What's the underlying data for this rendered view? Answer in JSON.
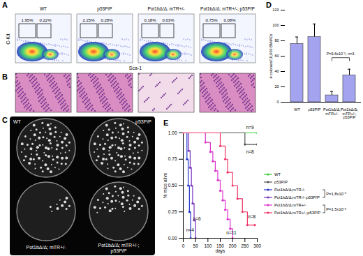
{
  "figure": {
    "panel_A": {
      "letter": "A",
      "y_label": "C-Kit",
      "x_label": "Sca-1",
      "plots": [
        {
          "label": "WT",
          "gates": [
            "1.95%",
            "0.22%"
          ]
        },
        {
          "label": "p53P/P",
          "gates": [
            "2.25%",
            "0.28%"
          ]
        },
        {
          "label": "Pot1bΔ/Δ; mTR+/-",
          "gates": [
            "0.18%",
            "0.03%"
          ]
        },
        {
          "label": "Pot1bΔ/Δ; mTR+/-; p53P/P",
          "gates": [
            "0.75%",
            "0.08%"
          ]
        }
      ]
    },
    "panel_B": {
      "letter": "B"
    },
    "panel_C": {
      "letter": "C",
      "labels": [
        "WT",
        "p53P/P",
        "Pot1bΔ/Δ; mTR+/-",
        "Pot1bΔ/Δ; mTR+/-; p53P/P"
      ]
    }
  },
  "chart_data": [
    {
      "type": "bar",
      "title": "D",
      "categories": [
        "WT",
        "p53P/P",
        "Pot1bΔ/Δ; mTR+/-",
        "Pot1bΔ/Δ; mTR+/-; p53P/P"
      ],
      "values": [
        76,
        85,
        9,
        35
      ],
      "errors": [
        9,
        17,
        5,
        8
      ],
      "color": "#a3a3f0",
      "ylabel": "# colonies/10,000 BMMCs",
      "ylim": [
        0,
        120
      ],
      "yticks": [
        0,
        20,
        40,
        60,
        80,
        100,
        120
      ],
      "annotations": [
        {
          "text": "P=9.6x10⁻³, n=3",
          "x1": "Pot1bΔ/Δ; mTR+/-",
          "x2": "Pot1bΔ/Δ; mTR+/-; p53P/P",
          "y": 58
        }
      ]
    },
    {
      "type": "line",
      "title": "E",
      "xlabel": "days",
      "ylabel": "% mice alive",
      "marker": "circle",
      "xlim": [
        0,
        300
      ],
      "xticks": [
        0,
        50,
        100,
        150,
        200,
        250,
        300
      ],
      "ylim": [
        0,
        1
      ],
      "yticks": [
        {
          "value": 0,
          "label": "0.00"
        },
        {
          "value": 0.25,
          "label": "0.25"
        },
        {
          "value": 0.5,
          "label": "0.50"
        },
        {
          "value": 0.75,
          "label": "0.75"
        },
        {
          "value": 1,
          "label": "1.00"
        }
      ],
      "series": [
        {
          "name": "WT",
          "color": "#33cc33",
          "x": [
            0,
            300
          ],
          "values": [
            1,
            1
          ]
        },
        {
          "name": "p53P/P",
          "color": "#555555",
          "x": [
            0,
            250,
            300
          ],
          "values": [
            1,
            0.89,
            0.89
          ]
        },
        {
          "name": "Pot1bΔ/Δ;mTR-/-",
          "color": "#2233cc",
          "x": [
            0,
            15,
            20,
            25,
            30
          ],
          "values": [
            1,
            0.75,
            0.5,
            0.25,
            0
          ]
        },
        {
          "name": "Pot1bΔ/Δ;mTR-/-;p53P/P",
          "color": "#7733bb",
          "x": [
            0,
            22,
            28,
            33,
            38,
            44,
            50
          ],
          "values": [
            1,
            0.83,
            0.67,
            0.5,
            0.33,
            0.17,
            0
          ]
        },
        {
          "name": "Pot1bΔ/Δ;mTR+/-",
          "color": "#dd33cc",
          "x": [
            0,
            90,
            110,
            120,
            130,
            140,
            150,
            160,
            170,
            180,
            190,
            200
          ],
          "values": [
            1,
            0.91,
            0.82,
            0.73,
            0.64,
            0.55,
            0.45,
            0.36,
            0.27,
            0.18,
            0.09,
            0
          ]
        },
        {
          "name": "Pot1bΔ/Δ;mTR+/-;p53P/P",
          "color": "#ee3366",
          "x": [
            0,
            150,
            170,
            180,
            200,
            220,
            240,
            260,
            290
          ],
          "values": [
            1,
            0.875,
            0.75,
            0.625,
            0.5,
            0.375,
            0.25,
            0.125,
            0.125
          ]
        }
      ],
      "annotations": [
        {
          "text": "n=9",
          "x": 255,
          "y": 1.05
        },
        {
          "text": "n=8",
          "x": 255,
          "y": 0.82
        },
        {
          "text": "n=4",
          "x": 12,
          "y": 0.08
        },
        {
          "text": "n=6",
          "x": 40,
          "y": 0.18
        },
        {
          "text": "n=11",
          "x": 175,
          "y": 0.05
        },
        {
          "text": "n=8",
          "x": 262,
          "y": 0.2
        }
      ],
      "pvalues": [
        {
          "text": "P=1.8x10⁻⁵",
          "series": [
            "Pot1bΔ/Δ;mTR-/-",
            "Pot1bΔ/Δ;mTR-/-;p53P/P"
          ]
        },
        {
          "text": "P=1.5x10⁻³",
          "series": [
            "Pot1bΔ/Δ;mTR+/-",
            "Pot1bΔ/Δ;mTR+/-;p53P/P"
          ]
        }
      ]
    }
  ]
}
